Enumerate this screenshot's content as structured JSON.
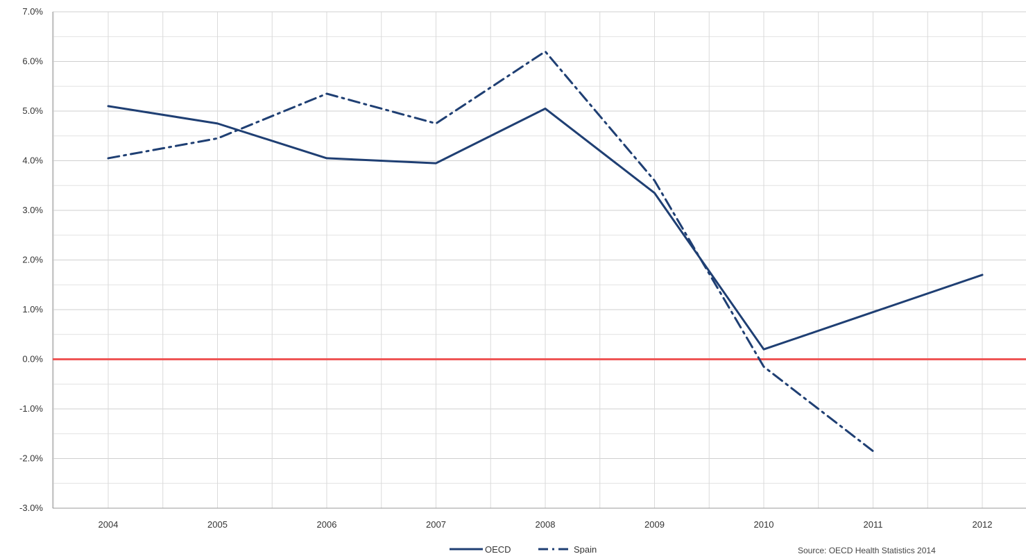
{
  "chart_data": {
    "type": "line",
    "title": "",
    "xlabel": "",
    "ylabel": "",
    "categories": [
      "2004",
      "2005",
      "2006",
      "2007",
      "2008",
      "2009",
      "2010",
      "2011",
      "2012"
    ],
    "ylim": [
      -3.0,
      7.0
    ],
    "y_ticks": [
      7.0,
      6.0,
      5.0,
      4.0,
      3.0,
      2.0,
      1.0,
      0.0,
      -1.0,
      -2.0,
      -3.0
    ],
    "y_tick_labels": [
      "7.0%",
      "6.0%",
      "5.0%",
      "4.0%",
      "3.0%",
      "2.0%",
      "1.0%",
      "0.0%",
      "-1.0%",
      "-2.0%",
      "-3.0%"
    ],
    "grid": true,
    "reference_line": {
      "y": 0.0,
      "color": "#ee5555"
    },
    "series": [
      {
        "name": "OECD",
        "style": "solid",
        "color": "#1f3f73",
        "values": [
          5.1,
          4.75,
          4.05,
          3.95,
          5.05,
          3.35,
          0.2,
          0.95,
          1.7
        ]
      },
      {
        "name": "Spain",
        "style": "dash-dot",
        "color": "#1f3f73",
        "values": [
          4.05,
          4.45,
          5.35,
          4.75,
          6.2,
          3.6,
          -0.15,
          -1.85,
          null
        ]
      }
    ],
    "legend": {
      "placement": "bottom-center",
      "entries": [
        "OECD",
        "Spain"
      ]
    },
    "source_note": "Source: OECD Health Statistics 2014"
  }
}
